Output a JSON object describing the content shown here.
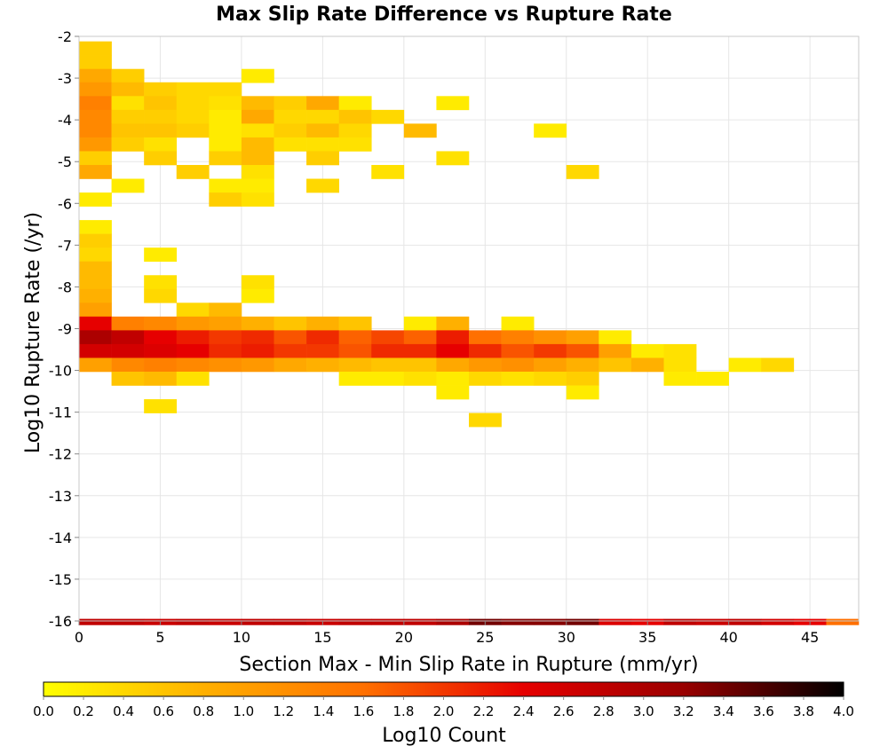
{
  "chart_data": {
    "type": "heatmap",
    "title": "Max Slip Rate Difference vs Rupture Rate",
    "xlabel": "Section Max - Min Slip Rate in Rupture (mm/yr)",
    "ylabel": "Log10 Rupture Rate (/yr)",
    "xlim": [
      0,
      48
    ],
    "ylim": [
      -16,
      -2
    ],
    "x_ticks": [
      "0",
      "5",
      "10",
      "15",
      "20",
      "25",
      "30",
      "35",
      "40",
      "45"
    ],
    "y_ticks": [
      "-2",
      "-3",
      "-4",
      "-5",
      "-6",
      "-7",
      "-8",
      "-9",
      "-10",
      "-11",
      "-12",
      "-13",
      "-14",
      "-15",
      "-16"
    ],
    "bin_width_x": 2,
    "bin_height_y": 0.33,
    "grid": true,
    "colorbar": {
      "label": "Log10 Count",
      "range": [
        0,
        4
      ],
      "ticks": [
        "0.0",
        "0.2",
        "0.4",
        "0.6",
        "0.8",
        "1.0",
        "1.2",
        "1.4",
        "1.6",
        "1.8",
        "2.0",
        "2.2",
        "2.4",
        "2.6",
        "2.8",
        "3.0",
        "3.2",
        "3.4",
        "3.6",
        "3.8",
        "4.0"
      ],
      "colors": [
        "#ffff00",
        "#ffb000",
        "#ff7000",
        "#e60000",
        "#990000",
        "#000000"
      ]
    },
    "cells_note": "each cell: x = left bin edge (mm/yr), y = log10 rupture rate bin top, v = log10 count",
    "cells": [
      {
        "x": 0,
        "y": -2.12,
        "v": 0.5
      },
      {
        "x": 0,
        "y": -2.45,
        "v": 0.5
      },
      {
        "x": 0,
        "y": -2.78,
        "v": 0.9
      },
      {
        "x": 2,
        "y": -2.78,
        "v": 0.5
      },
      {
        "x": 10,
        "y": -2.78,
        "v": 0.2
      },
      {
        "x": 0,
        "y": -3.1,
        "v": 1.1
      },
      {
        "x": 2,
        "y": -3.1,
        "v": 0.7
      },
      {
        "x": 4,
        "y": -3.1,
        "v": 0.5
      },
      {
        "x": 6,
        "y": -3.1,
        "v": 0.4
      },
      {
        "x": 8,
        "y": -3.1,
        "v": 0.4
      },
      {
        "x": 0,
        "y": -3.43,
        "v": 1.4
      },
      {
        "x": 2,
        "y": -3.43,
        "v": 0.3
      },
      {
        "x": 4,
        "y": -3.43,
        "v": 0.6
      },
      {
        "x": 6,
        "y": -3.43,
        "v": 0.4
      },
      {
        "x": 8,
        "y": -3.43,
        "v": 0.3
      },
      {
        "x": 10,
        "y": -3.43,
        "v": 0.7
      },
      {
        "x": 12,
        "y": -3.43,
        "v": 0.5
      },
      {
        "x": 14,
        "y": -3.43,
        "v": 0.9
      },
      {
        "x": 16,
        "y": -3.43,
        "v": 0.2
      },
      {
        "x": 22,
        "y": -3.43,
        "v": 0.2
      },
      {
        "x": 0,
        "y": -3.76,
        "v": 1.3
      },
      {
        "x": 2,
        "y": -3.76,
        "v": 0.5
      },
      {
        "x": 4,
        "y": -3.76,
        "v": 0.5
      },
      {
        "x": 6,
        "y": -3.76,
        "v": 0.4
      },
      {
        "x": 8,
        "y": -3.76,
        "v": 0.2
      },
      {
        "x": 10,
        "y": -3.76,
        "v": 0.9
      },
      {
        "x": 12,
        "y": -3.76,
        "v": 0.4
      },
      {
        "x": 14,
        "y": -3.76,
        "v": 0.4
      },
      {
        "x": 16,
        "y": -3.76,
        "v": 0.6
      },
      {
        "x": 18,
        "y": -3.76,
        "v": 0.4
      },
      {
        "x": 0,
        "y": -4.09,
        "v": 1.3
      },
      {
        "x": 2,
        "y": -4.09,
        "v": 0.6
      },
      {
        "x": 4,
        "y": -4.09,
        "v": 0.6
      },
      {
        "x": 6,
        "y": -4.09,
        "v": 0.5
      },
      {
        "x": 8,
        "y": -4.09,
        "v": 0.2
      },
      {
        "x": 10,
        "y": -4.09,
        "v": 0.3
      },
      {
        "x": 12,
        "y": -4.09,
        "v": 0.5
      },
      {
        "x": 14,
        "y": -4.09,
        "v": 0.7
      },
      {
        "x": 16,
        "y": -4.09,
        "v": 0.4
      },
      {
        "x": 20,
        "y": -4.09,
        "v": 0.7
      },
      {
        "x": 28,
        "y": -4.09,
        "v": 0.2
      },
      {
        "x": 0,
        "y": -4.42,
        "v": 1.1
      },
      {
        "x": 2,
        "y": -4.42,
        "v": 0.5
      },
      {
        "x": 4,
        "y": -4.42,
        "v": 0.3
      },
      {
        "x": 8,
        "y": -4.42,
        "v": 0.2
      },
      {
        "x": 10,
        "y": -4.42,
        "v": 0.7
      },
      {
        "x": 12,
        "y": -4.42,
        "v": 0.3
      },
      {
        "x": 14,
        "y": -4.42,
        "v": 0.3
      },
      {
        "x": 16,
        "y": -4.42,
        "v": 0.3
      },
      {
        "x": 0,
        "y": -4.75,
        "v": 0.5
      },
      {
        "x": 4,
        "y": -4.75,
        "v": 0.5
      },
      {
        "x": 8,
        "y": -4.75,
        "v": 0.5
      },
      {
        "x": 10,
        "y": -4.75,
        "v": 0.7
      },
      {
        "x": 14,
        "y": -4.75,
        "v": 0.5
      },
      {
        "x": 22,
        "y": -4.75,
        "v": 0.3
      },
      {
        "x": 0,
        "y": -5.08,
        "v": 0.9
      },
      {
        "x": 6,
        "y": -5.08,
        "v": 0.5
      },
      {
        "x": 10,
        "y": -5.08,
        "v": 0.3
      },
      {
        "x": 18,
        "y": -5.08,
        "v": 0.3
      },
      {
        "x": 30,
        "y": -5.08,
        "v": 0.4
      },
      {
        "x": 2,
        "y": -5.41,
        "v": 0.2
      },
      {
        "x": 8,
        "y": -5.41,
        "v": 0.2
      },
      {
        "x": 10,
        "y": -5.41,
        "v": 0.2
      },
      {
        "x": 14,
        "y": -5.41,
        "v": 0.4
      },
      {
        "x": 0,
        "y": -5.74,
        "v": 0.2
      },
      {
        "x": 8,
        "y": -5.74,
        "v": 0.5
      },
      {
        "x": 10,
        "y": -5.74,
        "v": 0.3
      },
      {
        "x": 0,
        "y": -6.4,
        "v": 0.2
      },
      {
        "x": 0,
        "y": -6.73,
        "v": 0.5
      },
      {
        "x": 0,
        "y": -7.06,
        "v": 0.4
      },
      {
        "x": 4,
        "y": -7.06,
        "v": 0.2
      },
      {
        "x": 0,
        "y": -7.39,
        "v": 0.7
      },
      {
        "x": 0,
        "y": -7.72,
        "v": 0.7
      },
      {
        "x": 4,
        "y": -7.72,
        "v": 0.3
      },
      {
        "x": 10,
        "y": -7.72,
        "v": 0.3
      },
      {
        "x": 0,
        "y": -8.05,
        "v": 0.8
      },
      {
        "x": 4,
        "y": -8.05,
        "v": 0.4
      },
      {
        "x": 10,
        "y": -8.05,
        "v": 0.2
      },
      {
        "x": 0,
        "y": -8.38,
        "v": 1.0
      },
      {
        "x": 6,
        "y": -8.38,
        "v": 0.4
      },
      {
        "x": 8,
        "y": -8.38,
        "v": 0.7
      },
      {
        "x": 0,
        "y": -8.71,
        "v": 2.4
      },
      {
        "x": 2,
        "y": -8.71,
        "v": 1.4
      },
      {
        "x": 4,
        "y": -8.71,
        "v": 1.3
      },
      {
        "x": 6,
        "y": -8.71,
        "v": 1.1
      },
      {
        "x": 8,
        "y": -8.71,
        "v": 1.0
      },
      {
        "x": 10,
        "y": -8.71,
        "v": 0.8
      },
      {
        "x": 12,
        "y": -8.71,
        "v": 0.6
      },
      {
        "x": 14,
        "y": -8.71,
        "v": 0.8
      },
      {
        "x": 16,
        "y": -8.71,
        "v": 0.6
      },
      {
        "x": 20,
        "y": -8.71,
        "v": 0.2
      },
      {
        "x": 22,
        "y": -8.71,
        "v": 0.8
      },
      {
        "x": 26,
        "y": -8.71,
        "v": 0.2
      },
      {
        "x": 0,
        "y": -9.04,
        "v": 3.0
      },
      {
        "x": 2,
        "y": -9.04,
        "v": 2.8
      },
      {
        "x": 4,
        "y": -9.04,
        "v": 2.4
      },
      {
        "x": 6,
        "y": -9.04,
        "v": 2.2
      },
      {
        "x": 8,
        "y": -9.04,
        "v": 2.0
      },
      {
        "x": 10,
        "y": -9.04,
        "v": 2.1
      },
      {
        "x": 12,
        "y": -9.04,
        "v": 1.8
      },
      {
        "x": 14,
        "y": -9.04,
        "v": 2.1
      },
      {
        "x": 16,
        "y": -9.04,
        "v": 1.7
      },
      {
        "x": 18,
        "y": -9.04,
        "v": 1.9
      },
      {
        "x": 20,
        "y": -9.04,
        "v": 1.7
      },
      {
        "x": 22,
        "y": -9.04,
        "v": 2.2
      },
      {
        "x": 24,
        "y": -9.04,
        "v": 1.6
      },
      {
        "x": 26,
        "y": -9.04,
        "v": 1.4
      },
      {
        "x": 28,
        "y": -9.04,
        "v": 1.2
      },
      {
        "x": 30,
        "y": -9.04,
        "v": 1.0
      },
      {
        "x": 32,
        "y": -9.04,
        "v": 0.2
      },
      {
        "x": 0,
        "y": -9.37,
        "v": 2.6
      },
      {
        "x": 2,
        "y": -9.37,
        "v": 2.6
      },
      {
        "x": 4,
        "y": -9.37,
        "v": 2.5
      },
      {
        "x": 6,
        "y": -9.37,
        "v": 2.4
      },
      {
        "x": 8,
        "y": -9.37,
        "v": 2.1
      },
      {
        "x": 10,
        "y": -9.37,
        "v": 2.2
      },
      {
        "x": 12,
        "y": -9.37,
        "v": 2.0
      },
      {
        "x": 14,
        "y": -9.37,
        "v": 2.0
      },
      {
        "x": 16,
        "y": -9.37,
        "v": 1.8
      },
      {
        "x": 18,
        "y": -9.37,
        "v": 2.1
      },
      {
        "x": 20,
        "y": -9.37,
        "v": 2.1
      },
      {
        "x": 22,
        "y": -9.37,
        "v": 2.4
      },
      {
        "x": 24,
        "y": -9.37,
        "v": 2.1
      },
      {
        "x": 26,
        "y": -9.37,
        "v": 1.8
      },
      {
        "x": 28,
        "y": -9.37,
        "v": 2.0
      },
      {
        "x": 30,
        "y": -9.37,
        "v": 1.8
      },
      {
        "x": 32,
        "y": -9.37,
        "v": 1.0
      },
      {
        "x": 34,
        "y": -9.37,
        "v": 0.2
      },
      {
        "x": 36,
        "y": -9.37,
        "v": 0.3
      },
      {
        "x": 0,
        "y": -9.7,
        "v": 1.0
      },
      {
        "x": 2,
        "y": -9.7,
        "v": 1.3
      },
      {
        "x": 4,
        "y": -9.7,
        "v": 1.4
      },
      {
        "x": 6,
        "y": -9.7,
        "v": 1.3
      },
      {
        "x": 8,
        "y": -9.7,
        "v": 1.2
      },
      {
        "x": 10,
        "y": -9.7,
        "v": 1.1
      },
      {
        "x": 12,
        "y": -9.7,
        "v": 0.9
      },
      {
        "x": 14,
        "y": -9.7,
        "v": 0.8
      },
      {
        "x": 16,
        "y": -9.7,
        "v": 0.7
      },
      {
        "x": 18,
        "y": -9.7,
        "v": 0.6
      },
      {
        "x": 20,
        "y": -9.7,
        "v": 0.6
      },
      {
        "x": 22,
        "y": -9.7,
        "v": 0.9
      },
      {
        "x": 24,
        "y": -9.7,
        "v": 1.1
      },
      {
        "x": 26,
        "y": -9.7,
        "v": 1.2
      },
      {
        "x": 28,
        "y": -9.7,
        "v": 1.0
      },
      {
        "x": 30,
        "y": -9.7,
        "v": 0.8
      },
      {
        "x": 32,
        "y": -9.7,
        "v": 0.6
      },
      {
        "x": 34,
        "y": -9.7,
        "v": 0.8
      },
      {
        "x": 36,
        "y": -9.7,
        "v": 0.3
      },
      {
        "x": 40,
        "y": -9.7,
        "v": 0.2
      },
      {
        "x": 42,
        "y": -9.7,
        "v": 0.4
      },
      {
        "x": 2,
        "y": -10.03,
        "v": 0.6
      },
      {
        "x": 4,
        "y": -10.03,
        "v": 0.7
      },
      {
        "x": 6,
        "y": -10.03,
        "v": 0.3
      },
      {
        "x": 16,
        "y": -10.03,
        "v": 0.2
      },
      {
        "x": 18,
        "y": -10.03,
        "v": 0.2
      },
      {
        "x": 20,
        "y": -10.03,
        "v": 0.3
      },
      {
        "x": 22,
        "y": -10.03,
        "v": 0.2
      },
      {
        "x": 24,
        "y": -10.03,
        "v": 0.4
      },
      {
        "x": 26,
        "y": -10.03,
        "v": 0.3
      },
      {
        "x": 28,
        "y": -10.03,
        "v": 0.4
      },
      {
        "x": 30,
        "y": -10.03,
        "v": 0.5
      },
      {
        "x": 36,
        "y": -10.03,
        "v": 0.2
      },
      {
        "x": 38,
        "y": -10.03,
        "v": 0.2
      },
      {
        "x": 22,
        "y": -10.36,
        "v": 0.2
      },
      {
        "x": 30,
        "y": -10.36,
        "v": 0.2
      },
      {
        "x": 4,
        "y": -10.69,
        "v": 0.3
      },
      {
        "x": 24,
        "y": -11.02,
        "v": 0.4
      }
    ],
    "bottom_row": {
      "y": -16.0,
      "x": [
        0,
        2,
        4,
        6,
        8,
        10,
        12,
        14,
        16,
        18,
        20,
        22,
        24,
        26,
        28,
        30,
        32,
        34,
        36,
        38,
        40,
        42,
        44,
        46
      ],
      "values": [
        2.8,
        2.8,
        2.7,
        2.8,
        2.7,
        2.8,
        2.8,
        2.7,
        2.8,
        2.8,
        2.8,
        3.0,
        3.4,
        3.3,
        3.3,
        3.4,
        2.5,
        2.4,
        2.8,
        2.7,
        2.8,
        2.6,
        2.4,
        1.6
      ]
    }
  }
}
